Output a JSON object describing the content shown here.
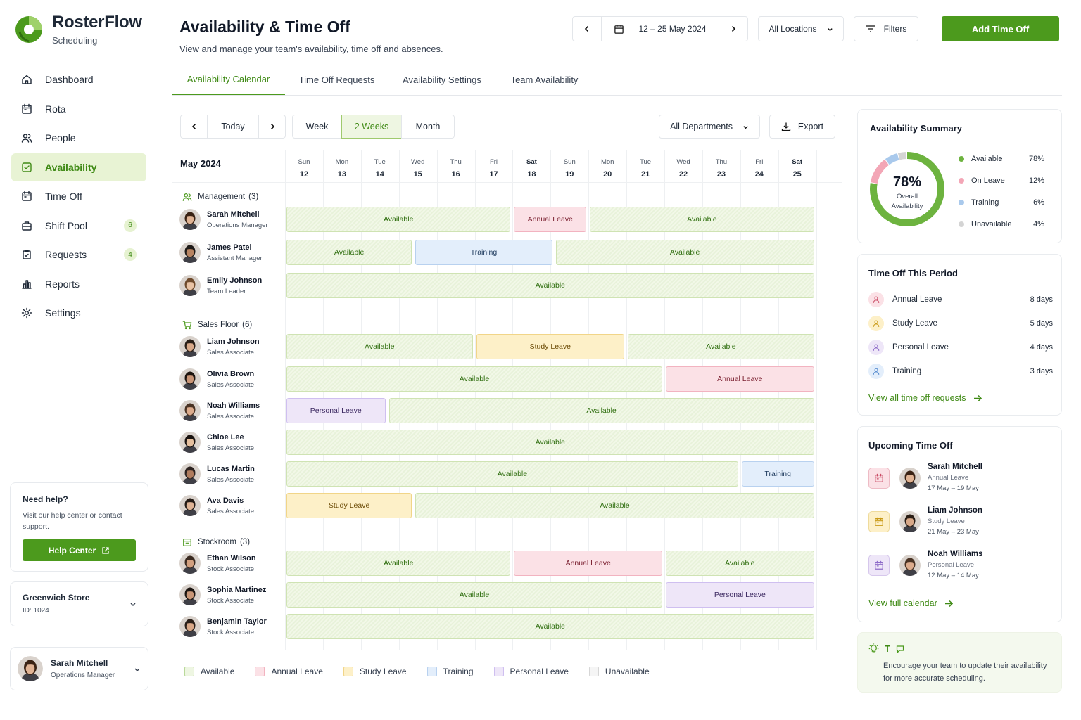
{
  "brand": {
    "name": "RosterFlow",
    "sub": "Scheduling"
  },
  "nav": [
    {
      "label": "Dashboard",
      "icon": "home-icon"
    },
    {
      "label": "Rota",
      "icon": "calendar-icon"
    },
    {
      "label": "People",
      "icon": "people-icon"
    },
    {
      "label": "Availability",
      "icon": "check-square-icon",
      "active": true
    },
    {
      "label": "Time Off",
      "icon": "calendar-icon"
    },
    {
      "label": "Shift Pool",
      "icon": "briefcase-icon",
      "badge": "6"
    },
    {
      "label": "Requests",
      "icon": "clipboard-icon",
      "badge": "4"
    },
    {
      "label": "Reports",
      "icon": "bar-chart-icon"
    },
    {
      "label": "Settings",
      "icon": "gear-icon"
    }
  ],
  "help": {
    "title": "Need help?",
    "text": "Visit our help center or contact support.",
    "button": "Help Center"
  },
  "store": {
    "name": "Greenwich Store",
    "id": "ID: 1024"
  },
  "user": {
    "name": "Sarah Mitchell",
    "role": "Operations Manager"
  },
  "page": {
    "title": "Availability & Time Off",
    "subtitle": "View and manage your team's availability, time off and absences."
  },
  "toolbar": {
    "date_range": "12 – 25 May 2024",
    "location": "All Locations",
    "filters": "Filters",
    "add": "Add Time Off"
  },
  "tabs": [
    "Availability Calendar",
    "Time Off Requests",
    "Availability Settings",
    "Team Availability"
  ],
  "cal_ctl": {
    "today": "Today",
    "week": "Week",
    "two_weeks": "2 Weeks",
    "month": "Month",
    "departments": "All Departments",
    "export": "Export"
  },
  "month": "May 2024",
  "days": [
    {
      "d": "Sun",
      "n": "12"
    },
    {
      "d": "Mon",
      "n": "13"
    },
    {
      "d": "Tue",
      "n": "14"
    },
    {
      "d": "Wed",
      "n": "15"
    },
    {
      "d": "Thu",
      "n": "16"
    },
    {
      "d": "Fri",
      "n": "17"
    },
    {
      "d": "Sat",
      "n": "18",
      "wk": true
    },
    {
      "d": "Sun",
      "n": "19"
    },
    {
      "d": "Mon",
      "n": "20"
    },
    {
      "d": "Tue",
      "n": "21"
    },
    {
      "d": "Wed",
      "n": "22"
    },
    {
      "d": "Thu",
      "n": "23"
    },
    {
      "d": "Fri",
      "n": "24"
    },
    {
      "d": "Sat",
      "n": "25",
      "wk": true
    }
  ],
  "groups": [
    {
      "name": "Management",
      "count": "(3)",
      "icon": "people-icon",
      "people": [
        {
          "name": "Sarah Mitchell",
          "role": "Operations Manager",
          "hair": "#3b2314",
          "skin": "#e0b394",
          "bars": [
            {
              "type": "avail",
              "label": "Available",
              "from": 0,
              "to": 6
            },
            {
              "type": "annual",
              "label": "Annual Leave",
              "from": 6,
              "to": 8
            },
            {
              "type": "avail",
              "label": "Available",
              "from": 8,
              "to": 14
            }
          ]
        },
        {
          "name": "James Patel",
          "role": "Assistant Manager",
          "hair": "#1f1b18",
          "skin": "#b88462",
          "bars": [
            {
              "type": "avail",
              "label": "Available",
              "from": 0,
              "to": 3.4
            },
            {
              "type": "training",
              "label": "Training",
              "from": 3.4,
              "to": 7.1
            },
            {
              "type": "avail",
              "label": "Available",
              "from": 7.1,
              "to": 14
            }
          ]
        },
        {
          "name": "Emily Johnson",
          "role": "Team Leader",
          "hair": "#6e4a2c",
          "skin": "#e8c2a4",
          "bars": [
            {
              "type": "avail",
              "label": "Available",
              "from": 0,
              "to": 14
            }
          ]
        }
      ]
    },
    {
      "name": "Sales Floor",
      "count": "(6)",
      "icon": "cart-icon",
      "people": [
        {
          "name": "Liam Johnson",
          "role": "Sales Associate",
          "hair": "#2a1e16",
          "skin": "#d8a888",
          "bars": [
            {
              "type": "avail",
              "label": "Available",
              "from": 0,
              "to": 5
            },
            {
              "type": "study",
              "label": "Study Leave",
              "from": 5,
              "to": 9
            },
            {
              "type": "avail",
              "label": "Available",
              "from": 9,
              "to": 14
            }
          ]
        },
        {
          "name": "Olivia Brown",
          "role": "Sales Associate",
          "hair": "#1e1510",
          "skin": "#c99577",
          "bars": [
            {
              "type": "avail",
              "label": "Available",
              "from": 0,
              "to": 10
            },
            {
              "type": "annual",
              "label": "Annual Leave",
              "from": 10,
              "to": 14
            }
          ]
        },
        {
          "name": "Noah Williams",
          "role": "Sales Associate",
          "hair": "#4a3324",
          "skin": "#dcab8c",
          "bars": [
            {
              "type": "personal",
              "label": "Personal Leave",
              "from": 0,
              "to": 2.7
            },
            {
              "type": "avail",
              "label": "Available",
              "from": 2.7,
              "to": 14
            }
          ]
        },
        {
          "name": "Chloe Lee",
          "role": "Sales Associate",
          "hair": "#1a1411",
          "skin": "#e6c09f",
          "bars": [
            {
              "type": "avail",
              "label": "Available",
              "from": 0,
              "to": 14
            }
          ]
        },
        {
          "name": "Lucas Martin",
          "role": "Sales Associate",
          "hair": "#2c2220",
          "skin": "#b07c5e",
          "bars": [
            {
              "type": "avail",
              "label": "Available",
              "from": 0,
              "to": 12
            },
            {
              "type": "training",
              "label": "Training",
              "from": 12,
              "to": 14
            }
          ]
        },
        {
          "name": "Ava Davis",
          "role": "Sales Associate",
          "hair": "#241a14",
          "skin": "#dfb394",
          "bars": [
            {
              "type": "study",
              "label": "Study Leave",
              "from": 0,
              "to": 3.4
            },
            {
              "type": "avail",
              "label": "Available",
              "from": 3.4,
              "to": 14
            }
          ]
        }
      ]
    },
    {
      "name": "Stockroom",
      "count": "(3)",
      "icon": "box-icon",
      "people": [
        {
          "name": "Ethan Wilson",
          "role": "Stock Associate",
          "hair": "#3a2a20",
          "skin": "#d2a07f",
          "bars": [
            {
              "type": "avail",
              "label": "Available",
              "from": 0,
              "to": 6
            },
            {
              "type": "annual",
              "label": "Annual Leave",
              "from": 6,
              "to": 10
            },
            {
              "type": "avail",
              "label": "Available",
              "from": 10,
              "to": 14
            }
          ]
        },
        {
          "name": "Sophia Martinez",
          "role": "Stock Associate",
          "hair": "#1b1410",
          "skin": "#c99676",
          "bars": [
            {
              "type": "avail",
              "label": "Available",
              "from": 0,
              "to": 10
            },
            {
              "type": "personal",
              "label": "Personal Leave",
              "from": 10,
              "to": 14
            }
          ]
        },
        {
          "name": "Benjamin Taylor",
          "role": "Stock Associate",
          "hair": "#2a1f18",
          "skin": "#d8a787",
          "bars": [
            {
              "type": "avail",
              "label": "Available",
              "from": 0,
              "to": 14
            }
          ]
        }
      ]
    }
  ],
  "legend": [
    {
      "label": "Available",
      "bg": "#eef6e2",
      "bd": "#b9d99a"
    },
    {
      "label": "Annual Leave",
      "bg": "#fbe1e6",
      "bd": "#f2b3c0"
    },
    {
      "label": "Study Leave",
      "bg": "#fdf0c8",
      "bd": "#f1d588"
    },
    {
      "label": "Training",
      "bg": "#e3eefb",
      "bd": "#b8d1ef"
    },
    {
      "label": "Personal Leave",
      "bg": "#eee6f8",
      "bd": "#cfbff0"
    },
    {
      "label": "Unavailable",
      "bg": "#f5f5f5",
      "bd": "#d6d6d6"
    }
  ],
  "summary": {
    "title": "Availability Summary",
    "pct": "78%",
    "label": "Overall Availability",
    "rows": [
      {
        "label": "Available",
        "value": "78%",
        "color": "#6db33f"
      },
      {
        "label": "On Leave",
        "value": "12%",
        "color": "#f3a6b6"
      },
      {
        "label": "Training",
        "value": "6%",
        "color": "#a9c9ec"
      },
      {
        "label": "Unavailable",
        "value": "4%",
        "color": "#d4d4d4"
      }
    ]
  },
  "time_off": {
    "title": "Time Off This Period",
    "rows": [
      {
        "label": "Annual Leave",
        "value": "8 days",
        "bg": "#fbe1e6",
        "fg": "#c94a64"
      },
      {
        "label": "Study Leave",
        "value": "5 days",
        "bg": "#fdf0c8",
        "fg": "#c99a16"
      },
      {
        "label": "Personal Leave",
        "value": "4 days",
        "bg": "#eee6f8",
        "fg": "#8e6cc9"
      },
      {
        "label": "Training",
        "value": "3 days",
        "bg": "#e3eefb",
        "fg": "#5b8fd0"
      }
    ],
    "link": "View all time off requests"
  },
  "upcoming": {
    "title": "Upcoming Time Off",
    "rows": [
      {
        "name": "Sarah Mitchell",
        "type": "Annual Leave",
        "dates": "17 May – 19 May",
        "bg": "#fbe1e6",
        "fg": "#c94a64",
        "hair": "#3b2314",
        "skin": "#e0b394"
      },
      {
        "name": "Liam Johnson",
        "type": "Study Leave",
        "dates": "21 May – 23 May",
        "bg": "#fdf0c8",
        "fg": "#c99a16",
        "hair": "#2a1e16",
        "skin": "#d8a888"
      },
      {
        "name": "Noah Williams",
        "type": "Personal Leave",
        "dates": "12 May – 14 May",
        "bg": "#eee6f8",
        "fg": "#8e6cc9",
        "hair": "#4a3324",
        "skin": "#dcab8c"
      }
    ],
    "link": "View full calendar"
  },
  "tip": {
    "title": "T",
    "text": "Encourage your team to update their availability for more accurate scheduling."
  }
}
